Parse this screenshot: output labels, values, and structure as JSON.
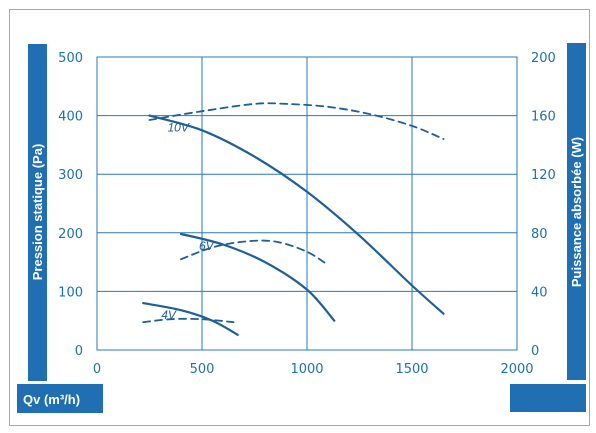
{
  "chart_data": {
    "type": "line",
    "xlabel": "Qv (m³/h)",
    "ylabel_left": "Pression statique (Pa)",
    "ylabel_right": "Puissance absorbée (W)",
    "xlim": [
      0,
      2000
    ],
    "ylim_left": [
      0,
      500
    ],
    "ylim_right": [
      0,
      200
    ],
    "x_ticks": [
      "0",
      "500",
      "1000",
      "1500",
      "2000"
    ],
    "y_ticks_left": [
      "0",
      "100",
      "200",
      "300",
      "400",
      "500"
    ],
    "y_ticks_right": [
      "0",
      "40",
      "80",
      "120",
      "160",
      "200"
    ],
    "grid": true,
    "colors": {
      "accent": "#1f6fb2",
      "curve": "#1f5f99",
      "grid": "#2a7ab9"
    },
    "series": [
      {
        "name": "10V",
        "style": "solid",
        "axis": "left",
        "x": [
          250,
          500,
          750,
          1000,
          1250,
          1500,
          1650
        ],
        "y": [
          400,
          375,
          330,
          270,
          195,
          110,
          62
        ]
      },
      {
        "name": "10V",
        "style": "dashed",
        "axis": "right",
        "x": [
          250,
          500,
          750,
          900,
          1100,
          1300,
          1500,
          1650
        ],
        "y": [
          157,
          163,
          168,
          168,
          166,
          161,
          153,
          144
        ]
      },
      {
        "name": "6V",
        "style": "solid",
        "axis": "left",
        "x": [
          400,
          600,
          800,
          1000,
          1130
        ],
        "y": [
          198,
          180,
          150,
          103,
          50
        ]
      },
      {
        "name": "6V",
        "style": "dashed",
        "axis": "right",
        "x": [
          400,
          550,
          700,
          850,
          1000,
          1100
        ],
        "y": [
          62,
          70,
          74,
          74,
          67,
          58
        ]
      },
      {
        "name": "4V",
        "style": "solid",
        "axis": "left",
        "x": [
          220,
          400,
          550,
          670
        ],
        "y": [
          80,
          68,
          50,
          26
        ]
      },
      {
        "name": "4V",
        "style": "dashed",
        "axis": "right",
        "x": [
          220,
          350,
          500,
          650
        ],
        "y": [
          19,
          21,
          21,
          19
        ]
      }
    ]
  }
}
